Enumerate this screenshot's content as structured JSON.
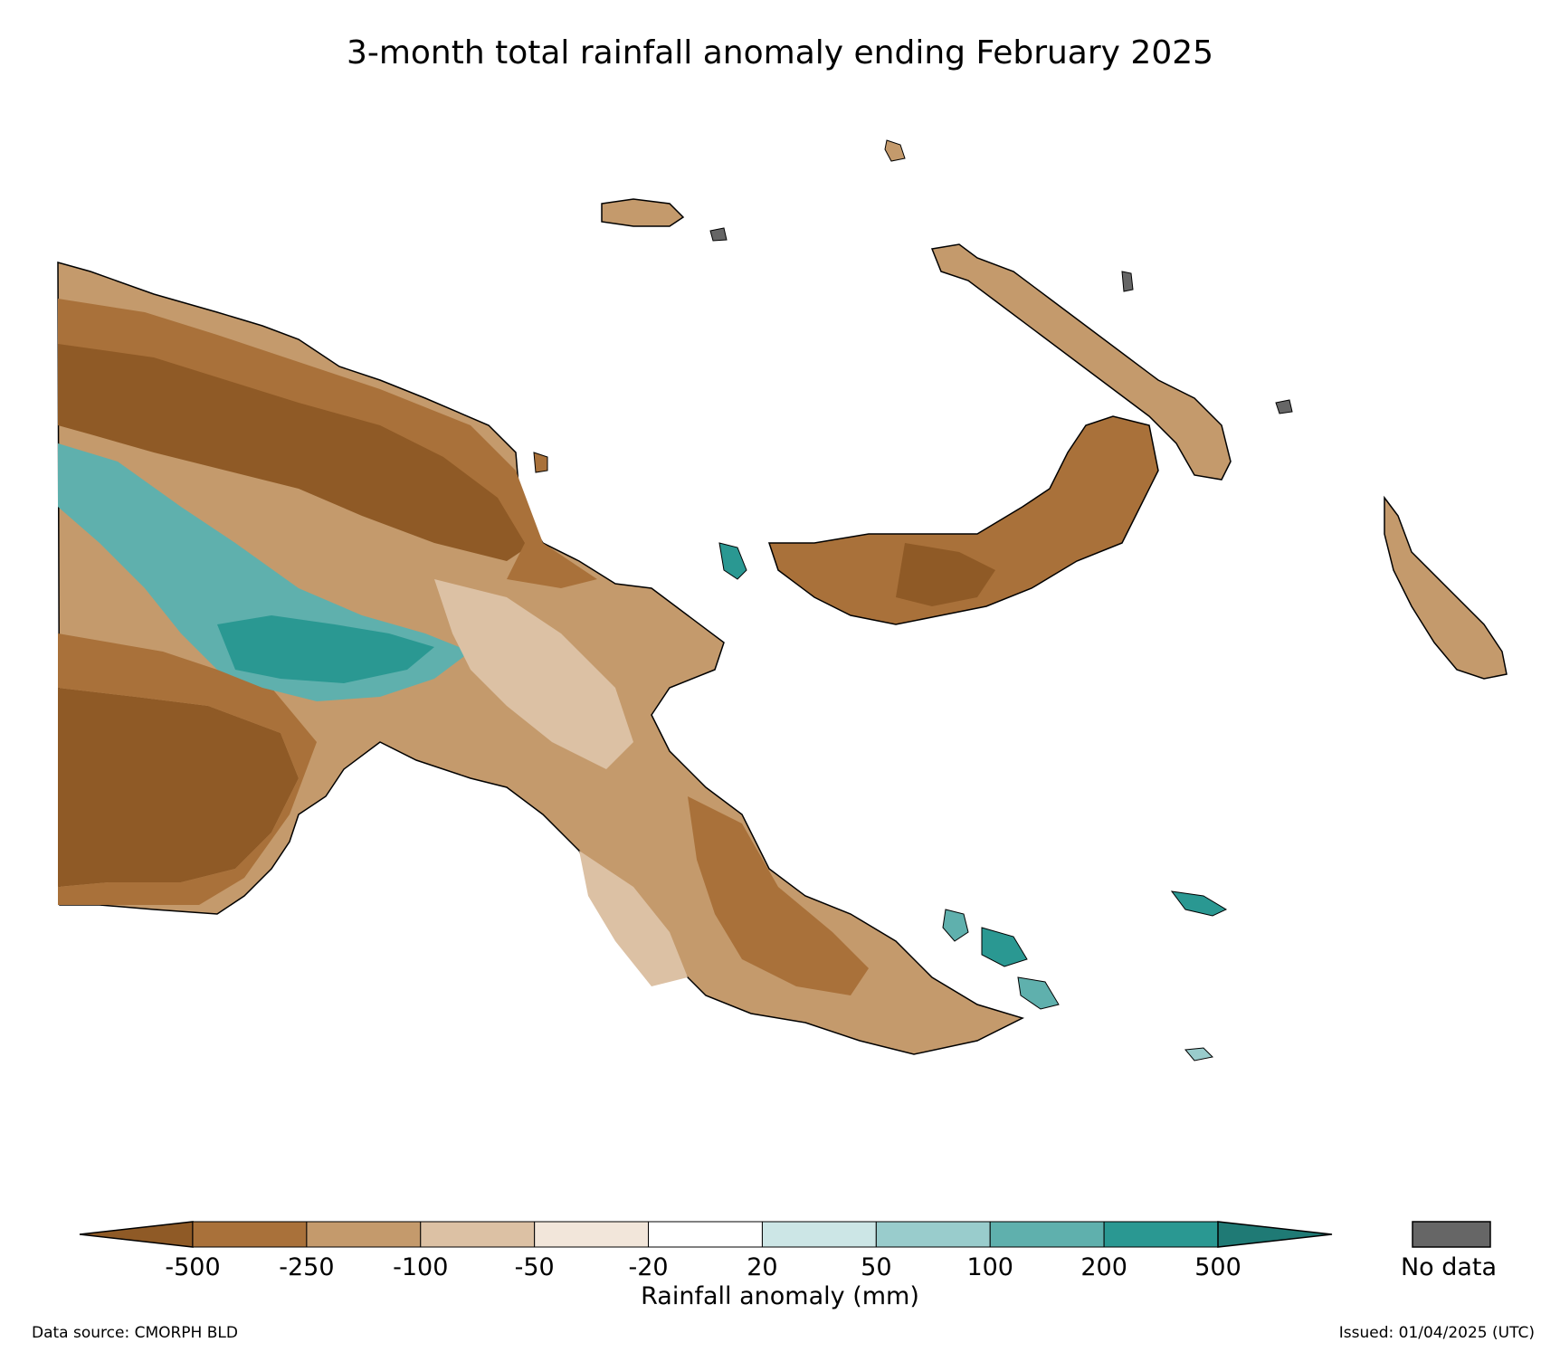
{
  "title": "3-month total rainfall anomaly ending February 2025",
  "colors": {
    "no_data": "#666666",
    "bins": [
      "#8f5a26",
      "#a9713a",
      "#c49a6c",
      "#dcc1a4",
      "#f2e6da",
      "#ffffff",
      "#cce6e6",
      "#99cccc",
      "#5fb0ad",
      "#2a9892",
      "#1f7a75"
    ]
  },
  "colorbar": {
    "ticks": [
      "-500",
      "-250",
      "-100",
      "-50",
      "-20",
      "20",
      "50",
      "100",
      "200",
      "500"
    ],
    "label": "Rainfall anomaly (mm)",
    "no_data_label": "No data"
  },
  "footer": {
    "source": "Data source: CMORPH BLD",
    "issued": "Issued: 01/04/2025 (UTC)"
  }
}
